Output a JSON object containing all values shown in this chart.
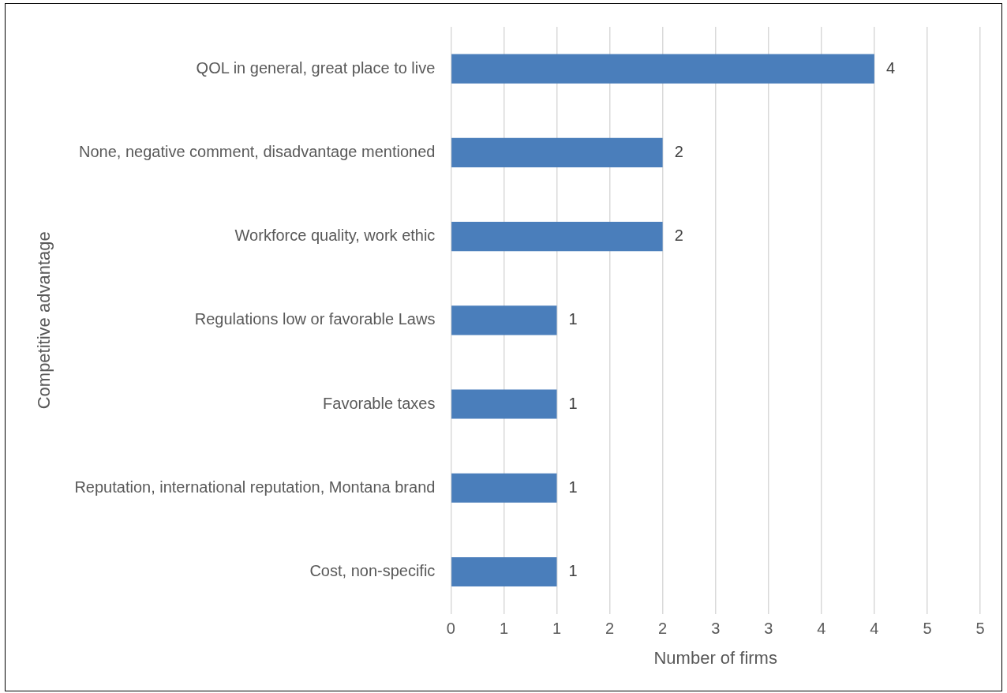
{
  "chart_data": {
    "type": "bar",
    "orientation": "horizontal",
    "xlabel": "Number of firms",
    "ylabel": "Competitive advantage",
    "categories": [
      "QOL in general, great place to live",
      "None, negative comment, disadvantage mentioned",
      "Workforce quality, work ethic",
      "Regulations low or favorable Laws",
      "Favorable taxes",
      "Reputation, international reputation, Montana brand",
      "Cost, non-specific"
    ],
    "values": [
      4,
      2,
      2,
      1,
      1,
      1,
      1
    ],
    "color": "#4a7ebb",
    "data_labels": true,
    "grid": "x",
    "legend": false,
    "xlim": [
      0,
      5
    ],
    "xticks": [
      0,
      {
        "value": 0.5,
        "label": "1"
      },
      1,
      {
        "value": 1.5,
        "label": "2"
      },
      2,
      {
        "value": 2.5,
        "label": "3"
      },
      3,
      {
        "value": 3.5,
        "label": "4"
      },
      4,
      {
        "value": 4.5,
        "label": "5"
      },
      5
    ]
  }
}
